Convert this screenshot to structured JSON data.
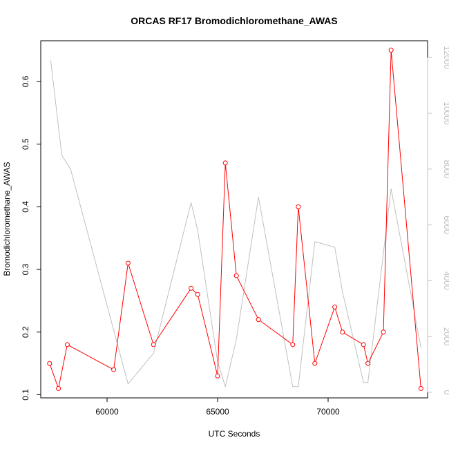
{
  "chart_data": {
    "type": "line",
    "title": "ORCAS RF17 Bromodichloromethane_AWAS",
    "xlabel": "UTC Seconds",
    "ylabel": "Bromodichloromethane_AWAS",
    "xlim": [
      57000,
      74500
    ],
    "ylim": [
      0.095,
      0.665
    ],
    "y2lim": [
      -200,
      12600
    ],
    "x_ticks": [
      60000,
      65000,
      70000
    ],
    "y_ticks": [
      0.1,
      0.2,
      0.3,
      0.4,
      0.5,
      0.6
    ],
    "y2_ticks": [
      0,
      2000,
      4000,
      6000,
      8000,
      10000,
      12000
    ],
    "colors": {
      "primary": "#ff0000",
      "secondary": "#c0c0c0"
    },
    "series": [
      {
        "axis": "left",
        "style": "line-with-open-circles",
        "color": "#ff0000",
        "x": [
          57400,
          57800,
          58200,
          60300,
          60950,
          62100,
          63800,
          64100,
          65000,
          65350,
          65850,
          66850,
          68400,
          68650,
          69400,
          70300,
          70650,
          71600,
          71800,
          72500,
          72850,
          74200
        ],
        "y": [
          0.15,
          0.11,
          0.18,
          0.14,
          0.31,
          0.18,
          0.27,
          0.26,
          0.13,
          0.47,
          0.29,
          0.22,
          0.18,
          0.4,
          0.15,
          0.24,
          0.2,
          0.18,
          0.15,
          0.2,
          0.65,
          0.11
        ]
      },
      {
        "axis": "right",
        "style": "line",
        "color": "#c0c0c0",
        "x": [
          57450,
          57950,
          58350,
          60950,
          62100,
          63800,
          64100,
          65000,
          65350,
          65850,
          66850,
          68400,
          68650,
          69400,
          70300,
          70650,
          71600,
          71800,
          72850,
          74200
        ],
        "y": [
          11900,
          8500,
          8000,
          300,
          1400,
          6800,
          5800,
          1100,
          200,
          1900,
          7000,
          200,
          200,
          5400,
          5200,
          3600,
          350,
          350,
          7300,
          1600
        ]
      }
    ]
  }
}
